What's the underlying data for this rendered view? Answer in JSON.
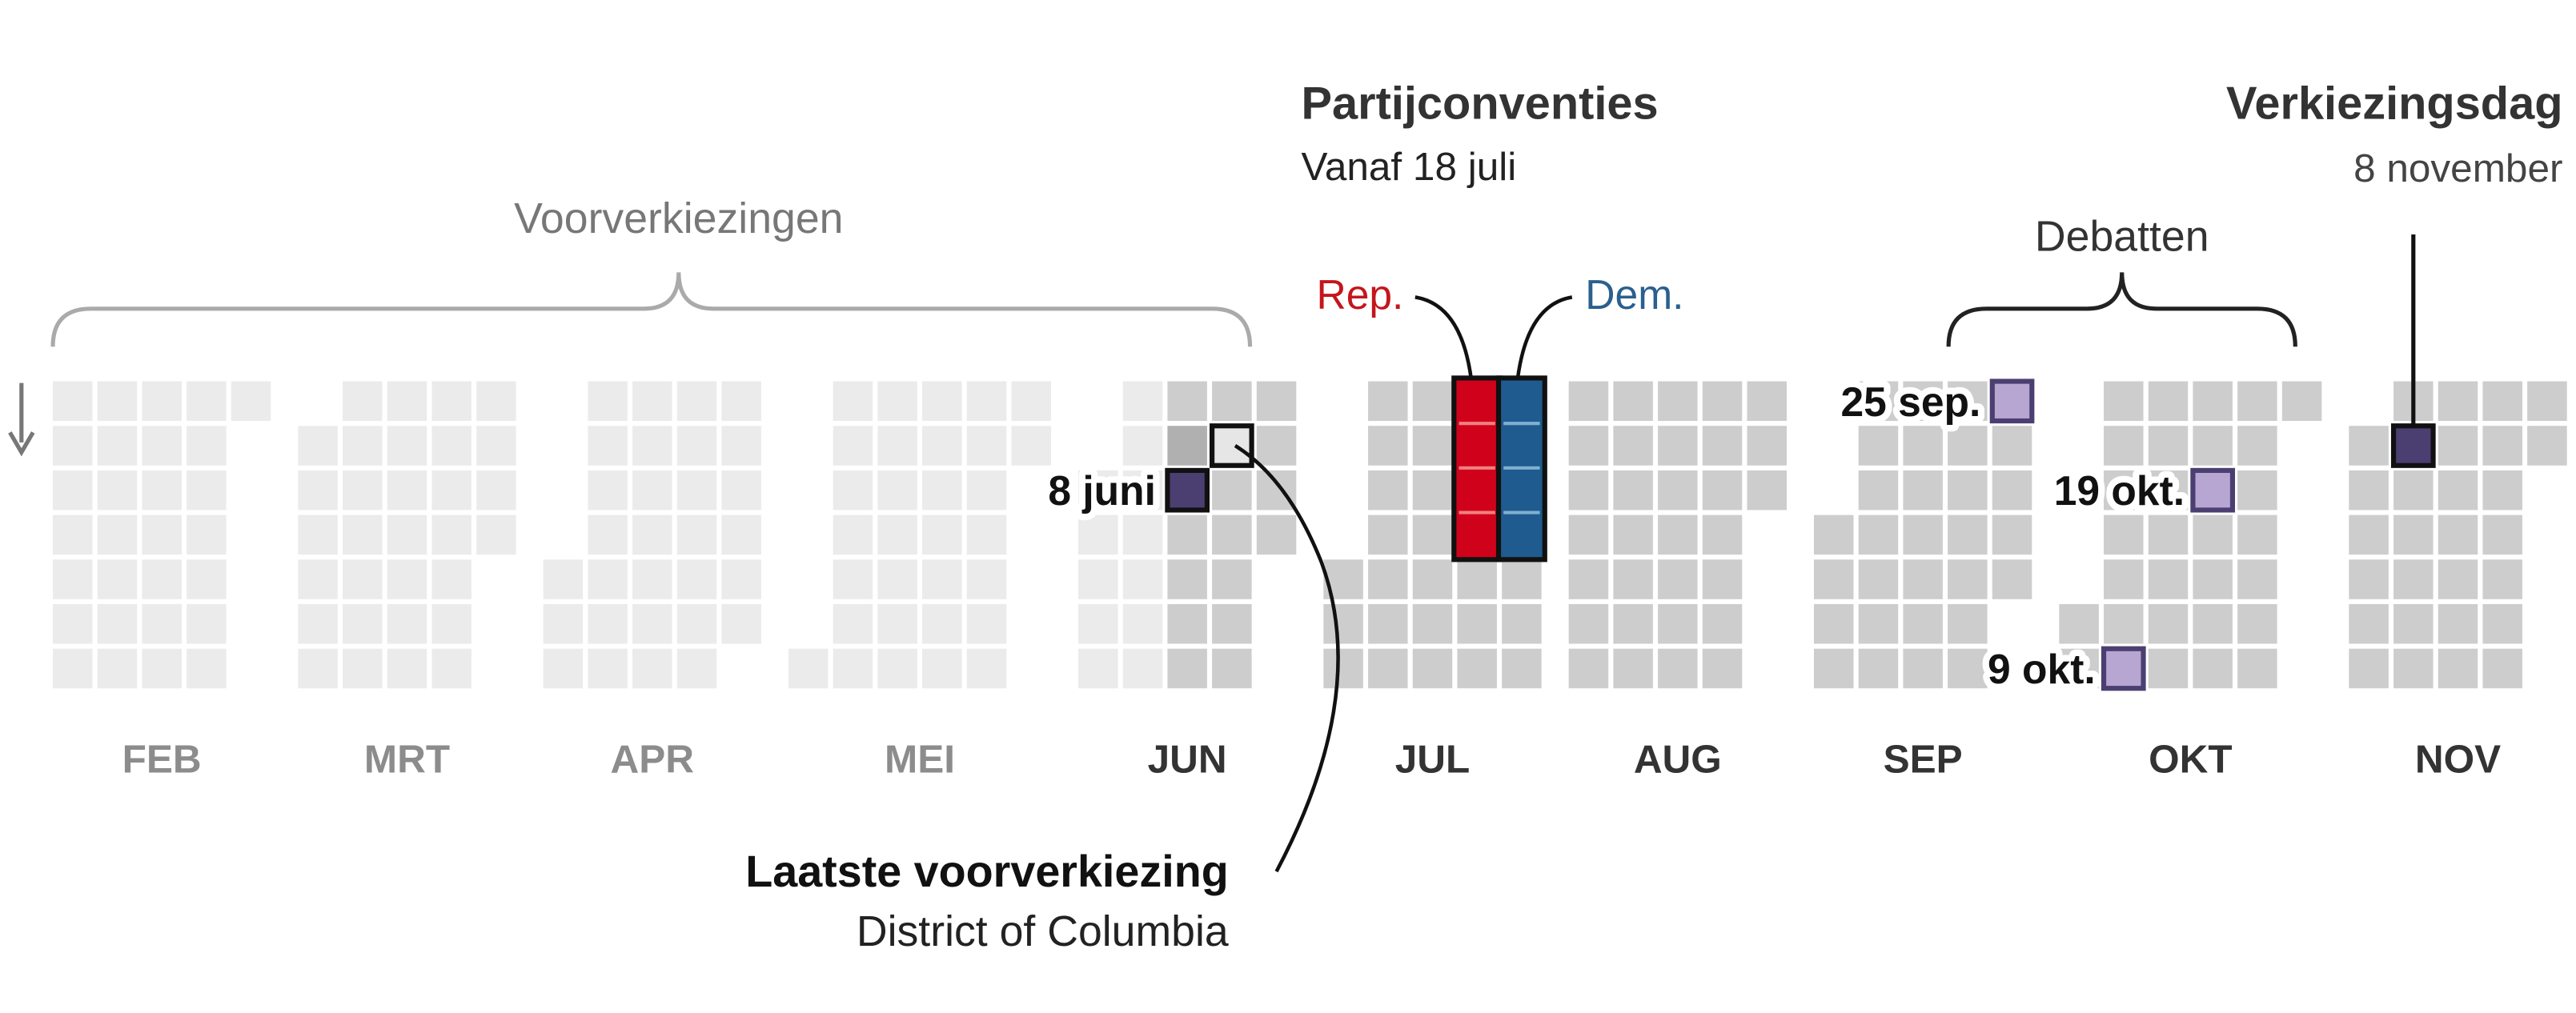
{
  "months": [
    "FEB",
    "MRT",
    "APR",
    "MEI",
    "JUN",
    "JUL",
    "AUG",
    "SEP",
    "OKT",
    "NOV"
  ],
  "annotations": {
    "primaries": "Voorverkiezingen",
    "conventions": {
      "title": "Partijconventies",
      "subtitle": "Vanaf 18 juli",
      "rep": "Rep.",
      "dem": "Dem."
    },
    "debates": {
      "title": "Debatten",
      "dates": [
        "25 sep.",
        "9 okt.",
        "19 okt."
      ]
    },
    "election": {
      "title": "Verkiezingsdag",
      "subtitle": "8 november"
    },
    "last_primary": {
      "title": "Laatste voorverkiezing",
      "subtitle": "District of Columbia",
      "date": "8 juni"
    }
  }
}
